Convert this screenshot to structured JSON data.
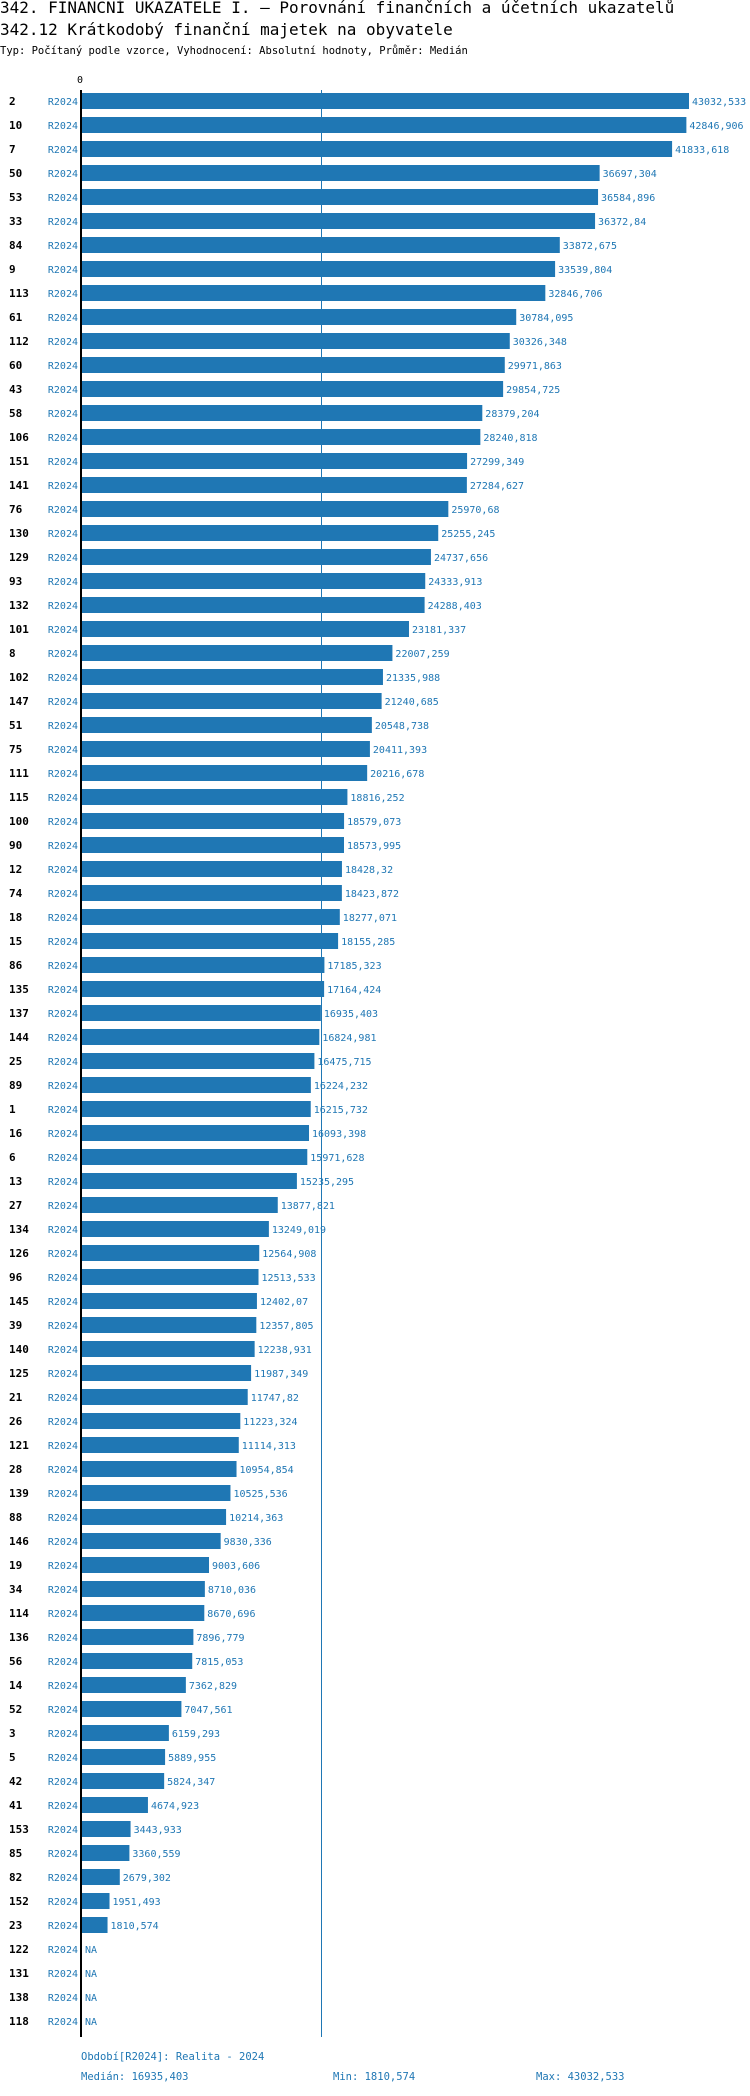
{
  "header": {
    "title": "342. FINANČNÍ UKAZATELE I. – Porovnání finančních a účetních ukazatelů",
    "subtitle": "342.12 Krátkodobý finanční majetek na obyvatele",
    "type_line": "Typ: Počítaný podle vzorce, Vyhodnocení: Absolutní hodnoty, Průměr: Medián"
  },
  "colors": {
    "bar": "#1f77b4",
    "text": "#000000",
    "accent": "#1f77b4"
  },
  "chart_data": {
    "type": "bar",
    "orientation": "horizontal",
    "axis_zero_label": "0",
    "series_label": "R2024",
    "na_label": "NA",
    "median": 16935.403,
    "xlim": [
      0,
      43032.533
    ],
    "rows": [
      {
        "id": "2",
        "value": 43032.533,
        "label": "43032,533"
      },
      {
        "id": "10",
        "value": 42846.906,
        "label": "42846,906"
      },
      {
        "id": "7",
        "value": 41833.618,
        "label": "41833,618"
      },
      {
        "id": "50",
        "value": 36697.304,
        "label": "36697,304"
      },
      {
        "id": "53",
        "value": 36584.896,
        "label": "36584,896"
      },
      {
        "id": "33",
        "value": 36372.84,
        "label": "36372,84"
      },
      {
        "id": "84",
        "value": 33872.675,
        "label": "33872,675"
      },
      {
        "id": "9",
        "value": 33539.804,
        "label": "33539,804"
      },
      {
        "id": "113",
        "value": 32846.706,
        "label": "32846,706"
      },
      {
        "id": "61",
        "value": 30784.095,
        "label": "30784,095"
      },
      {
        "id": "112",
        "value": 30326.348,
        "label": "30326,348"
      },
      {
        "id": "60",
        "value": 29971.863,
        "label": "29971,863"
      },
      {
        "id": "43",
        "value": 29854.725,
        "label": "29854,725"
      },
      {
        "id": "58",
        "value": 28379.204,
        "label": "28379,204"
      },
      {
        "id": "106",
        "value": 28240.818,
        "label": "28240,818"
      },
      {
        "id": "151",
        "value": 27299.349,
        "label": "27299,349"
      },
      {
        "id": "141",
        "value": 27284.627,
        "label": "27284,627"
      },
      {
        "id": "76",
        "value": 25970.68,
        "label": "25970,68"
      },
      {
        "id": "130",
        "value": 25255.245,
        "label": "25255,245"
      },
      {
        "id": "129",
        "value": 24737.656,
        "label": "24737,656"
      },
      {
        "id": "93",
        "value": 24333.913,
        "label": "24333,913"
      },
      {
        "id": "132",
        "value": 24288.403,
        "label": "24288,403"
      },
      {
        "id": "101",
        "value": 23181.337,
        "label": "23181,337"
      },
      {
        "id": "8",
        "value": 22007.259,
        "label": "22007,259"
      },
      {
        "id": "102",
        "value": 21335.988,
        "label": "21335,988"
      },
      {
        "id": "147",
        "value": 21240.685,
        "label": "21240,685"
      },
      {
        "id": "51",
        "value": 20548.738,
        "label": "20548,738"
      },
      {
        "id": "75",
        "value": 20411.393,
        "label": "20411,393"
      },
      {
        "id": "111",
        "value": 20216.678,
        "label": "20216,678"
      },
      {
        "id": "115",
        "value": 18816.252,
        "label": "18816,252"
      },
      {
        "id": "100",
        "value": 18579.073,
        "label": "18579,073"
      },
      {
        "id": "90",
        "value": 18573.995,
        "label": "18573,995"
      },
      {
        "id": "12",
        "value": 18428.32,
        "label": "18428,32"
      },
      {
        "id": "74",
        "value": 18423.872,
        "label": "18423,872"
      },
      {
        "id": "18",
        "value": 18277.071,
        "label": "18277,071"
      },
      {
        "id": "15",
        "value": 18155.285,
        "label": "18155,285"
      },
      {
        "id": "86",
        "value": 17185.323,
        "label": "17185,323"
      },
      {
        "id": "135",
        "value": 17164.424,
        "label": "17164,424"
      },
      {
        "id": "137",
        "value": 16935.403,
        "label": "16935,403"
      },
      {
        "id": "144",
        "value": 16824.981,
        "label": "16824,981"
      },
      {
        "id": "25",
        "value": 16475.715,
        "label": "16475,715"
      },
      {
        "id": "89",
        "value": 16224.232,
        "label": "16224,232"
      },
      {
        "id": "1",
        "value": 16215.732,
        "label": "16215,732"
      },
      {
        "id": "16",
        "value": 16093.398,
        "label": "16093,398"
      },
      {
        "id": "6",
        "value": 15971.628,
        "label": "15971,628"
      },
      {
        "id": "13",
        "value": 15235.295,
        "label": "15235,295"
      },
      {
        "id": "27",
        "value": 13877.821,
        "label": "13877,821"
      },
      {
        "id": "134",
        "value": 13249.019,
        "label": "13249,019"
      },
      {
        "id": "126",
        "value": 12564.908,
        "label": "12564,908"
      },
      {
        "id": "96",
        "value": 12513.533,
        "label": "12513,533"
      },
      {
        "id": "145",
        "value": 12402.07,
        "label": "12402,07"
      },
      {
        "id": "39",
        "value": 12357.805,
        "label": "12357,805"
      },
      {
        "id": "140",
        "value": 12238.931,
        "label": "12238,931"
      },
      {
        "id": "125",
        "value": 11987.349,
        "label": "11987,349"
      },
      {
        "id": "21",
        "value": 11747.82,
        "label": "11747,82"
      },
      {
        "id": "26",
        "value": 11223.324,
        "label": "11223,324"
      },
      {
        "id": "121",
        "value": 11114.313,
        "label": "11114,313"
      },
      {
        "id": "28",
        "value": 10954.854,
        "label": "10954,854"
      },
      {
        "id": "139",
        "value": 10525.536,
        "label": "10525,536"
      },
      {
        "id": "88",
        "value": 10214.363,
        "label": "10214,363"
      },
      {
        "id": "146",
        "value": 9830.336,
        "label": "9830,336"
      },
      {
        "id": "19",
        "value": 9003.606,
        "label": "9003,606"
      },
      {
        "id": "34",
        "value": 8710.036,
        "label": "8710,036"
      },
      {
        "id": "114",
        "value": 8670.696,
        "label": "8670,696"
      },
      {
        "id": "136",
        "value": 7896.779,
        "label": "7896,779"
      },
      {
        "id": "56",
        "value": 7815.053,
        "label": "7815,053"
      },
      {
        "id": "14",
        "value": 7362.829,
        "label": "7362,829"
      },
      {
        "id": "52",
        "value": 7047.561,
        "label": "7047,561"
      },
      {
        "id": "3",
        "value": 6159.293,
        "label": "6159,293"
      },
      {
        "id": "5",
        "value": 5889.955,
        "label": "5889,955"
      },
      {
        "id": "42",
        "value": 5824.347,
        "label": "5824,347"
      },
      {
        "id": "41",
        "value": 4674.923,
        "label": "4674,923"
      },
      {
        "id": "153",
        "value": 3443.933,
        "label": "3443,933"
      },
      {
        "id": "85",
        "value": 3360.559,
        "label": "3360,559"
      },
      {
        "id": "82",
        "value": 2679.302,
        "label": "2679,302"
      },
      {
        "id": "152",
        "value": 1951.493,
        "label": "1951,493"
      },
      {
        "id": "23",
        "value": 1810.574,
        "label": "1810,574"
      },
      {
        "id": "122",
        "value": null,
        "label": "NA"
      },
      {
        "id": "131",
        "value": null,
        "label": "NA"
      },
      {
        "id": "138",
        "value": null,
        "label": "NA"
      },
      {
        "id": "118",
        "value": null,
        "label": "NA"
      }
    ]
  },
  "footer": {
    "period": "Období[R2024]: Realita - 2024",
    "median": "Medián: 16935,403",
    "min": "Min: 1810,574",
    "max": "Max: 43032,533"
  }
}
